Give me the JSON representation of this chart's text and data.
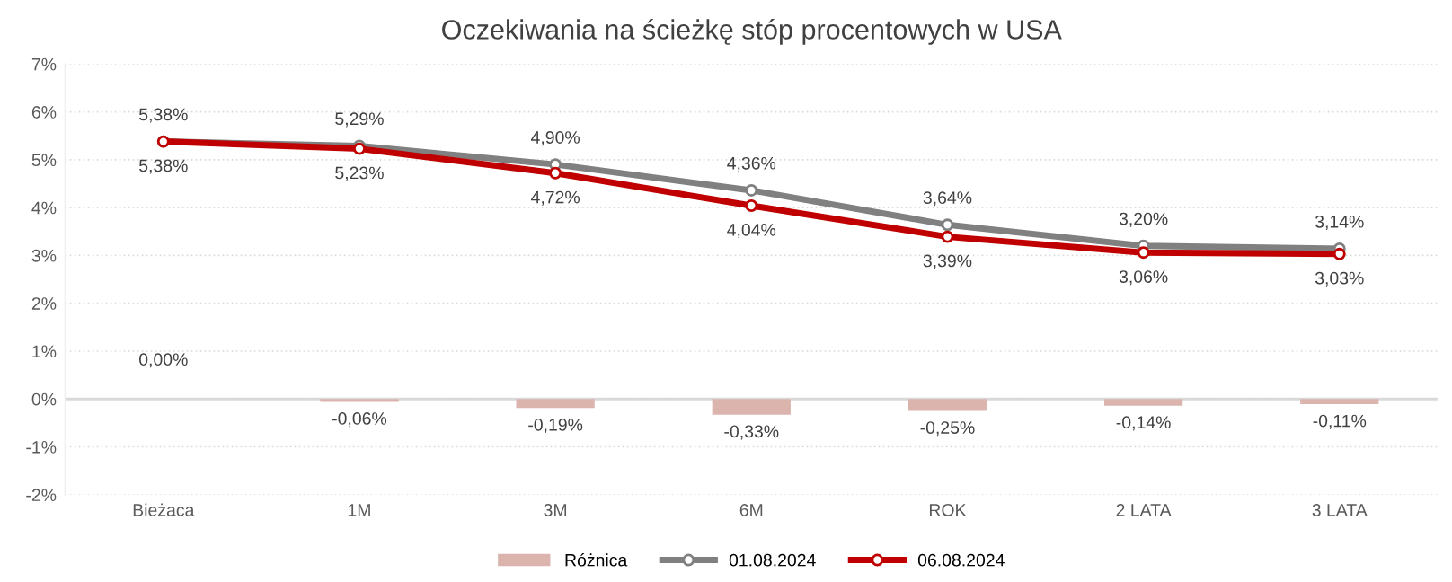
{
  "chart_data": {
    "type": "line",
    "title": "Oczekiwania na ścieżkę stóp procentowych w USA",
    "categories": [
      "Bieżaca",
      "1M",
      "3M",
      "6M",
      "ROK",
      "2 LATA",
      "3 LATA"
    ],
    "series": [
      {
        "name": "Różnica",
        "type": "bar",
        "color": "#dbb4ae",
        "values": [
          0.0,
          -0.06,
          -0.19,
          -0.33,
          -0.25,
          -0.14,
          -0.11
        ],
        "value_labels": [
          "0,00%",
          "-0,06%",
          "-0,19%",
          "-0,33%",
          "-0,25%",
          "-0,14%",
          "-0,11%"
        ]
      },
      {
        "name": "01.08.2024",
        "color": "#808080",
        "values": [
          5.38,
          5.29,
          4.9,
          4.36,
          3.64,
          3.2,
          3.14
        ],
        "value_labels": [
          "5,38%",
          "5,29%",
          "4,90%",
          "4,36%",
          "3,64%",
          "3,20%",
          "3,14%"
        ]
      },
      {
        "name": "06.08.2024",
        "color": "#c00000",
        "values": [
          5.38,
          5.23,
          4.72,
          4.04,
          3.39,
          3.06,
          3.03
        ],
        "value_labels": [
          "5,38%",
          "5,23%",
          "4,72%",
          "4,04%",
          "3,39%",
          "3,06%",
          "3,03%"
        ]
      }
    ],
    "ylim": [
      -2,
      7
    ],
    "yticks": [
      {
        "value": -2,
        "label": "-2%"
      },
      {
        "value": -1,
        "label": "-1%"
      },
      {
        "value": 0,
        "label": "0%"
      },
      {
        "value": 1,
        "label": "1%"
      },
      {
        "value": 2,
        "label": "2%"
      },
      {
        "value": 3,
        "label": "3%"
      },
      {
        "value": 4,
        "label": "4%"
      },
      {
        "value": 5,
        "label": "5%"
      },
      {
        "value": 6,
        "label": "6%"
      },
      {
        "value": 7,
        "label": "7%"
      }
    ],
    "grid": "y",
    "legend": "bottom",
    "marker": "circle",
    "line_style": "solid"
  }
}
